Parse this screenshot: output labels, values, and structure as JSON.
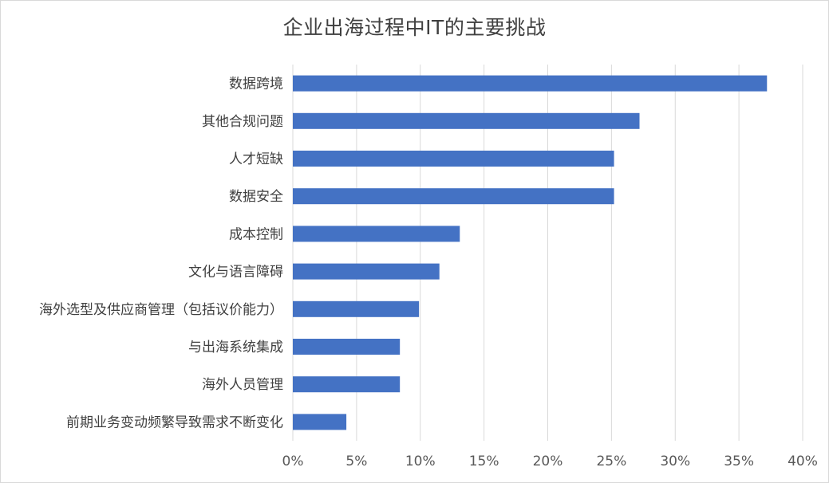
{
  "chart_data": {
    "type": "bar",
    "orientation": "horizontal",
    "title": "企业出海过程中IT的主要挑战",
    "categories": [
      "数据跨境",
      "其他合规问题",
      "人才短缺",
      "数据安全",
      "成本控制",
      "文化与语言障碍",
      "海外选型及供应商管理（包括议价能力）",
      "与出海系统集成",
      "海外人员管理",
      "前期业务变动频繁导致需求不断变化"
    ],
    "values": [
      0.372,
      0.272,
      0.252,
      0.252,
      0.131,
      0.115,
      0.099,
      0.084,
      0.084,
      0.042
    ],
    "xlim": [
      0,
      0.4
    ],
    "x_ticks": [
      0,
      0.05,
      0.1,
      0.15,
      0.2,
      0.25,
      0.3,
      0.35,
      0.4
    ],
    "x_tick_labels": [
      "0%",
      "5%",
      "10%",
      "15%",
      "20%",
      "25%",
      "30%",
      "35%",
      "40%"
    ],
    "xlabel": "",
    "ylabel": "",
    "grid": "vertical",
    "legend": "none",
    "bar_color": "#4472C4",
    "grid_color": "#d9d9d9"
  }
}
